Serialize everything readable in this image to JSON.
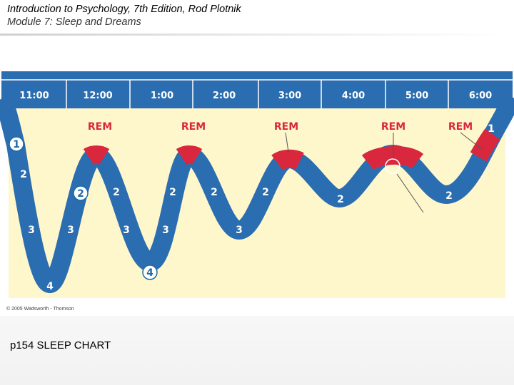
{
  "header": {
    "title": "Introduction to Psychology, 7th Edition, Rod Plotnik",
    "subtitle": "Module 7:  Sleep and Dreams"
  },
  "chart": {
    "hours": [
      "11:00",
      "12:00",
      "1:00",
      "2:00",
      "3:00",
      "4:00",
      "5:00",
      "6:00"
    ],
    "rem_label": "REM",
    "copyright": "© 2005 Wadsworth - Thomson",
    "colors": {
      "wave": "#2a6db0",
      "rem": "#d9283e",
      "background": "#fff7cc",
      "header_bar": "#2a6db0"
    },
    "stages_in_order": [
      "1",
      "2",
      "3",
      "4",
      "3",
      "2",
      "REM",
      "2",
      "3",
      "4",
      "3",
      "2",
      "REM",
      "2",
      "3",
      "2",
      "REM",
      "2",
      "REM",
      "2",
      "REM",
      "1"
    ]
  },
  "caption": "p154 SLEEP CHART"
}
